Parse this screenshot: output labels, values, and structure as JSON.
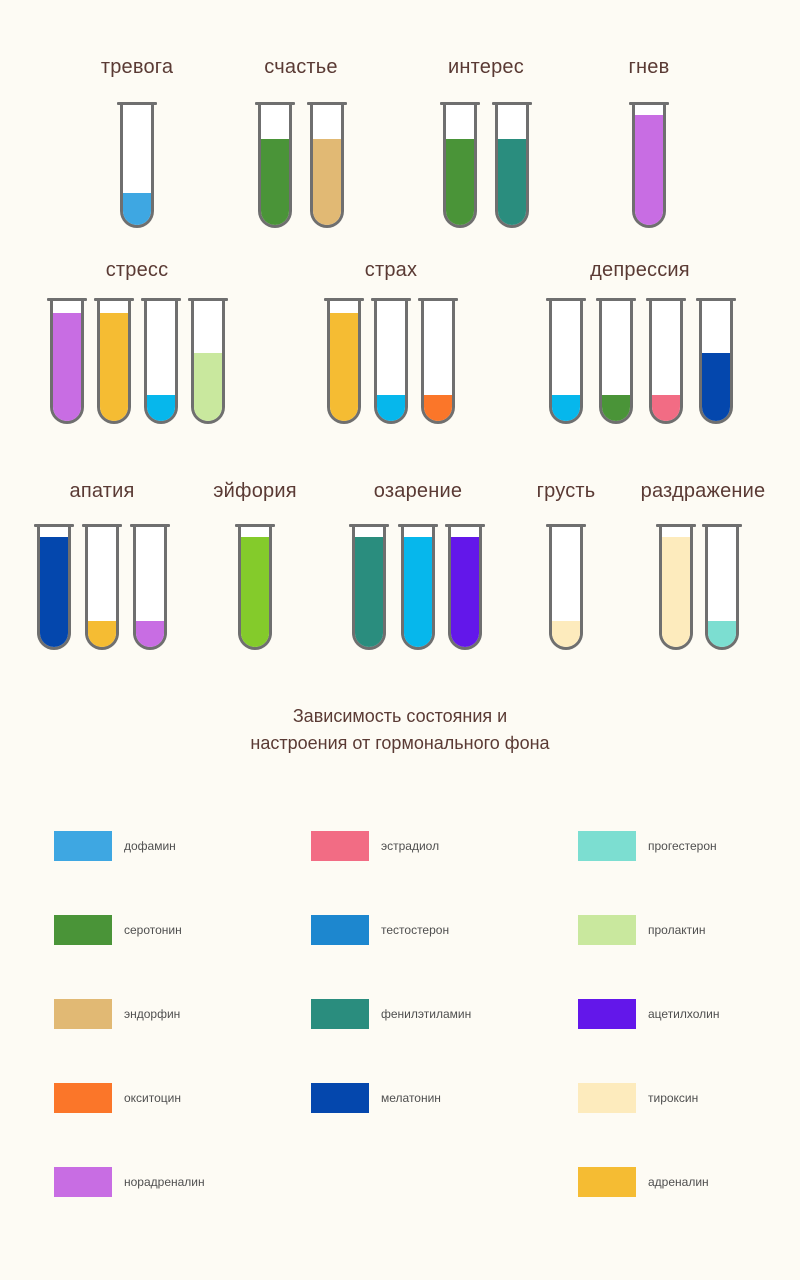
{
  "title": {
    "line1": "Зависимость состояния и",
    "line2": "настроения от гормонального фона"
  },
  "hormone_colors": {
    "дофамин": "#3ea7e2",
    "серотонин": "#4a9438",
    "эндорфин": "#e1b974",
    "окситоцин": "#fb7629",
    "норадреналин": "#c86de3",
    "эстрадиол": "#f26c84",
    "тестостерон": "#1d87cf",
    "фенилэтиламин": "#2a8d7e",
    "мелатонин": "#0447ad",
    "прогестерон": "#7cded1",
    "пролактин": "#c9e89e",
    "ацетилхолин": "#6317ea",
    "тироксин": "#fdebbd",
    "адреналин": "#f5bc33",
    "стресс_пролактин": "#c9e89e",
    "эйфория_зелёный": "#84cb2b",
    "голубой": "#06b7ec"
  },
  "emotions": [
    {
      "name": "тревога",
      "tubes": [
        {
          "hormone": "дофамин",
          "color": "#3ea7e2",
          "level": 0.27
        }
      ]
    },
    {
      "name": "счастье",
      "tubes": [
        {
          "hormone": "серотонин",
          "color": "#4a9438",
          "level": 0.72
        },
        {
          "hormone": "эндорфин",
          "color": "#e1b974",
          "level": 0.72
        }
      ]
    },
    {
      "name": "интерес",
      "tubes": [
        {
          "hormone": "серотонин",
          "color": "#4a9438",
          "level": 0.72
        },
        {
          "hormone": "фенилэтиламин",
          "color": "#2a8d7e",
          "level": 0.72
        }
      ]
    },
    {
      "name": "гнев",
      "tubes": [
        {
          "hormone": "норадреналин",
          "color": "#c86de3",
          "level": 0.92
        }
      ]
    },
    {
      "name": "стресс",
      "tubes": [
        {
          "hormone": "норадреналин",
          "color": "#c86de3",
          "level": 0.9
        },
        {
          "hormone": "адреналин",
          "color": "#f5bc33",
          "level": 0.9
        },
        {
          "hormone": "дофамин",
          "color": "#06b7ec",
          "level": 0.22
        },
        {
          "hormone": "пролактин",
          "color": "#c9e89e",
          "level": 0.57
        }
      ]
    },
    {
      "name": "страх",
      "tubes": [
        {
          "hormone": "адреналин",
          "color": "#f5bc33",
          "level": 0.9
        },
        {
          "hormone": "дофамин",
          "color": "#06b7ec",
          "level": 0.22
        },
        {
          "hormone": "окситоцин",
          "color": "#fb7629",
          "level": 0.22
        }
      ]
    },
    {
      "name": "депрессия",
      "tubes": [
        {
          "hormone": "дофамин",
          "color": "#06b7ec",
          "level": 0.22
        },
        {
          "hormone": "серотонин",
          "color": "#4a9438",
          "level": 0.22
        },
        {
          "hormone": "эстрадиол",
          "color": "#f26c84",
          "level": 0.22
        },
        {
          "hormone": "мелатонин",
          "color": "#0447ad",
          "level": 0.57
        }
      ]
    },
    {
      "name": "апатия",
      "tubes": [
        {
          "hormone": "мелатонин",
          "color": "#0447ad",
          "level": 0.92
        },
        {
          "hormone": "адреналин",
          "color": "#f5bc33",
          "level": 0.22
        },
        {
          "hormone": "норадреналин",
          "color": "#c86de3",
          "level": 0.22
        }
      ]
    },
    {
      "name": "эйфория",
      "tubes": [
        {
          "hormone": "серотонин",
          "color": "#84cb2b",
          "level": 0.92
        }
      ]
    },
    {
      "name": "озарение",
      "tubes": [
        {
          "hormone": "фенилэтиламин",
          "color": "#2a8d7e",
          "level": 0.92
        },
        {
          "hormone": "дофамин",
          "color": "#06b7ec",
          "level": 0.92
        },
        {
          "hormone": "ацетилхолин",
          "color": "#6317ea",
          "level": 0.92
        }
      ]
    },
    {
      "name": "грусть",
      "tubes": [
        {
          "hormone": "тироксин",
          "color": "#fdebbd",
          "level": 0.22
        }
      ]
    },
    {
      "name": "раздражение",
      "tubes": [
        {
          "hormone": "тироксин",
          "color": "#fdebbd",
          "level": 0.92
        },
        {
          "hormone": "прогестерон",
          "color": "#7cded1",
          "level": 0.22
        }
      ]
    }
  ],
  "legend": {
    "items": [
      {
        "label": "дофамин",
        "color": "#3ea7e2"
      },
      {
        "label": "серотонин",
        "color": "#4a9438"
      },
      {
        "label": "эндорфин",
        "color": "#e1b974"
      },
      {
        "label": "окситоцин",
        "color": "#fb7629"
      },
      {
        "label": "норадреналин",
        "color": "#c86de3"
      },
      {
        "label": "эстрадиол",
        "color": "#f26c84"
      },
      {
        "label": "тестостерон",
        "color": "#1d87cf"
      },
      {
        "label": "фенилэтиламин",
        "color": "#2a8d7e"
      },
      {
        "label": "мелатонин",
        "color": "#0447ad"
      },
      {
        "label": "прогестерон",
        "color": "#7cded1"
      },
      {
        "label": "пролактин",
        "color": "#c9e89e"
      },
      {
        "label": "ацетилхолин",
        "color": "#6317ea"
      },
      {
        "label": "тироксин",
        "color": "#fdebbd"
      },
      {
        "label": "адреналин",
        "color": "#f5bc33"
      }
    ]
  }
}
